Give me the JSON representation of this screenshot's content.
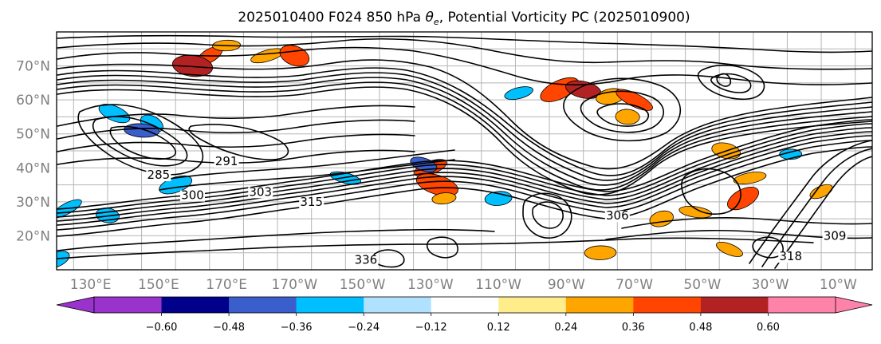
{
  "chart_data": {
    "type": "map",
    "title": "2025010400 F024 850 hPa θe, Potential Vorticity PC (2025010900)",
    "title_parts": {
      "prefix": "2025010400 F024 850 hPa ",
      "theta": "θ",
      "sub": "e",
      "suffix": ", Potential Vorticity PC (2025010900)"
    },
    "lat_labels": [
      "70°N",
      "60°N",
      "50°N",
      "40°N",
      "30°N",
      "20°N"
    ],
    "lat_values": [
      70,
      60,
      50,
      40,
      30,
      20
    ],
    "lon_labels": [
      "130°E",
      "150°E",
      "170°E",
      "170°W",
      "150°W",
      "130°W",
      "110°W",
      "90°W",
      "70°W",
      "50°W",
      "30°W",
      "10°W"
    ],
    "lon_values": [
      130,
      150,
      170,
      190,
      210,
      230,
      250,
      270,
      290,
      310,
      330,
      350
    ],
    "map_extent": {
      "lon_min": 120,
      "lon_max": 360,
      "lat_min": 10,
      "lat_max": 80
    },
    "contour_labels": [
      {
        "text": "291",
        "lon": 170,
        "lat": 41
      },
      {
        "text": "285",
        "lon": 150,
        "lat": 37
      },
      {
        "text": "300",
        "lon": 160,
        "lat": 31
      },
      {
        "text": "303",
        "lon": 180,
        "lat": 32
      },
      {
        "text": "315",
        "lon": 195,
        "lat": 29
      },
      {
        "text": "306",
        "lon": 285,
        "lat": 25
      },
      {
        "text": "336",
        "lon": 211,
        "lat": 12
      },
      {
        "text": "318",
        "lon": 336,
        "lat": 13
      },
      {
        "text": "309",
        "lon": 349,
        "lat": 19
      }
    ],
    "colorbar": {
      "tick_labels": [
        "−0.60",
        "−0.48",
        "−0.36",
        "−0.24",
        "−0.12",
        "0.12",
        "0.24",
        "0.36",
        "0.48",
        "0.60"
      ],
      "bounds": [
        -0.72,
        -0.6,
        -0.48,
        -0.36,
        -0.24,
        -0.12,
        0.12,
        0.24,
        0.36,
        0.48,
        0.6,
        0.72
      ],
      "colors": [
        "#9933cc",
        "#00008b",
        "#3a5fcd",
        "#00bfff",
        "#b0e2ff",
        "#ffffff",
        "#ffec8b",
        "#ffa500",
        "#ff4500",
        "#b22222",
        "#ff82ab"
      ],
      "under_color": "#9933cc",
      "over_color": "#ff82ab"
    },
    "pv_anomalies": [
      {
        "lon": 165,
        "lat": 73,
        "value": 0.4
      },
      {
        "lon": 160,
        "lat": 70,
        "value": 0.52
      },
      {
        "lon": 182,
        "lat": 73,
        "value": 0.3
      },
      {
        "lon": 190,
        "lat": 73,
        "value": 0.45
      },
      {
        "lon": 170,
        "lat": 76,
        "value": 0.28
      },
      {
        "lon": 268,
        "lat": 63,
        "value": 0.42
      },
      {
        "lon": 275,
        "lat": 63,
        "value": 0.58
      },
      {
        "lon": 283,
        "lat": 61,
        "value": 0.3
      },
      {
        "lon": 290,
        "lat": 60,
        "value": 0.4
      },
      {
        "lon": 288,
        "lat": 55,
        "value": 0.3
      },
      {
        "lon": 230,
        "lat": 40,
        "value": 0.4
      },
      {
        "lon": 232,
        "lat": 35,
        "value": 0.45
      },
      {
        "lon": 234,
        "lat": 31,
        "value": 0.3
      },
      {
        "lon": 322,
        "lat": 31,
        "value": 0.4
      },
      {
        "lon": 308,
        "lat": 27,
        "value": 0.28
      },
      {
        "lon": 298,
        "lat": 25,
        "value": 0.3
      },
      {
        "lon": 318,
        "lat": 16,
        "value": 0.28
      },
      {
        "lon": 280,
        "lat": 15,
        "value": 0.26
      },
      {
        "lon": 345,
        "lat": 33,
        "value": 0.3
      },
      {
        "lon": 317,
        "lat": 45,
        "value": 0.3
      },
      {
        "lon": 324,
        "lat": 37,
        "value": 0.28
      },
      {
        "lon": 148,
        "lat": 53,
        "value": -0.3
      },
      {
        "lon": 145,
        "lat": 51,
        "value": -0.42
      },
      {
        "lon": 155,
        "lat": 35,
        "value": -0.3
      },
      {
        "lon": 228,
        "lat": 41,
        "value": -0.38
      },
      {
        "lon": 250,
        "lat": 31,
        "value": -0.26
      },
      {
        "lon": 123,
        "lat": 28,
        "value": -0.28
      },
      {
        "lon": 135,
        "lat": 26,
        "value": -0.28
      },
      {
        "lon": 256,
        "lat": 62,
        "value": -0.3
      },
      {
        "lon": 137,
        "lat": 56,
        "value": -0.28
      },
      {
        "lon": 336,
        "lat": 44,
        "value": -0.26
      },
      {
        "lon": 120,
        "lat": 13,
        "value": -0.26
      },
      {
        "lon": 205,
        "lat": 37,
        "value": -0.26
      }
    ]
  }
}
